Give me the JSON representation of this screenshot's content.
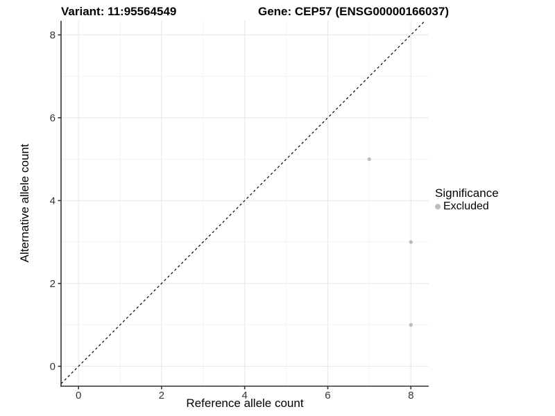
{
  "chart_data": {
    "type": "scatter",
    "titles": {
      "variant": "Variant: 11:95564549",
      "gene": "Gene: CEP57 (ENSG00000166037)"
    },
    "xlabel": "Reference allele count",
    "ylabel": "Alternative allele count",
    "xlim": [
      -0.42,
      8.43
    ],
    "ylim": [
      -0.48,
      8.34
    ],
    "x_ticks": [
      0,
      2,
      4,
      6,
      8
    ],
    "y_ticks": [
      0,
      2,
      4,
      6,
      8
    ],
    "minor_gridlines": [
      1,
      3,
      5,
      7
    ],
    "grid": true,
    "reference_line": {
      "equation": "y = x",
      "style": "dashed",
      "color": "#000000"
    },
    "series": [
      {
        "name": "Excluded",
        "color": "#bdbdbd",
        "points": [
          {
            "x": 7,
            "y": 5
          },
          {
            "x": 8,
            "y": 3
          },
          {
            "x": 8,
            "y": 1
          }
        ]
      }
    ],
    "legend": {
      "title": "Significance",
      "position": "right",
      "items": [
        {
          "label": "Excluded",
          "color": "#bdbdbd"
        }
      ]
    },
    "colors": {
      "axis_line": "#333333",
      "tick_text": "#333333",
      "grid_major": "#e8e8e8",
      "grid_minor": "#f2f2f2",
      "background": "#ffffff"
    }
  }
}
